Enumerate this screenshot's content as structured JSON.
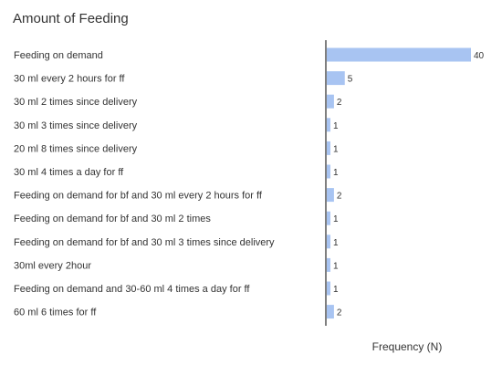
{
  "chart_data": {
    "type": "bar",
    "orientation": "horizontal",
    "title": "Amount of Feeding",
    "xlabel": "Frequency (N)",
    "ylabel": "",
    "categories": [
      "Feeding on demand",
      "30 ml every 2 hours for ff",
      "30 ml 2 times since delivery",
      "30 ml 3 times since delivery",
      "20 ml 8 times since delivery",
      "30 ml 4 times a day for ff",
      "Feeding on demand for bf and 30 ml every 2 hours for ff",
      "Feeding on demand for bf and 30 ml 2 times",
      "Feeding on demand for bf and 30 ml 3 times since delivery",
      "30ml every 2hour",
      "Feeding on demand and 30-60 ml 4 times a day for ff",
      "60 ml 6 times for ff"
    ],
    "values": [
      40,
      5,
      2,
      1,
      1,
      1,
      2,
      1,
      1,
      1,
      1,
      2
    ],
    "xlim": [
      0,
      40
    ],
    "bar_color": "#a8c4f2",
    "axis_color": "#555555",
    "grid": false,
    "legend": "none"
  }
}
